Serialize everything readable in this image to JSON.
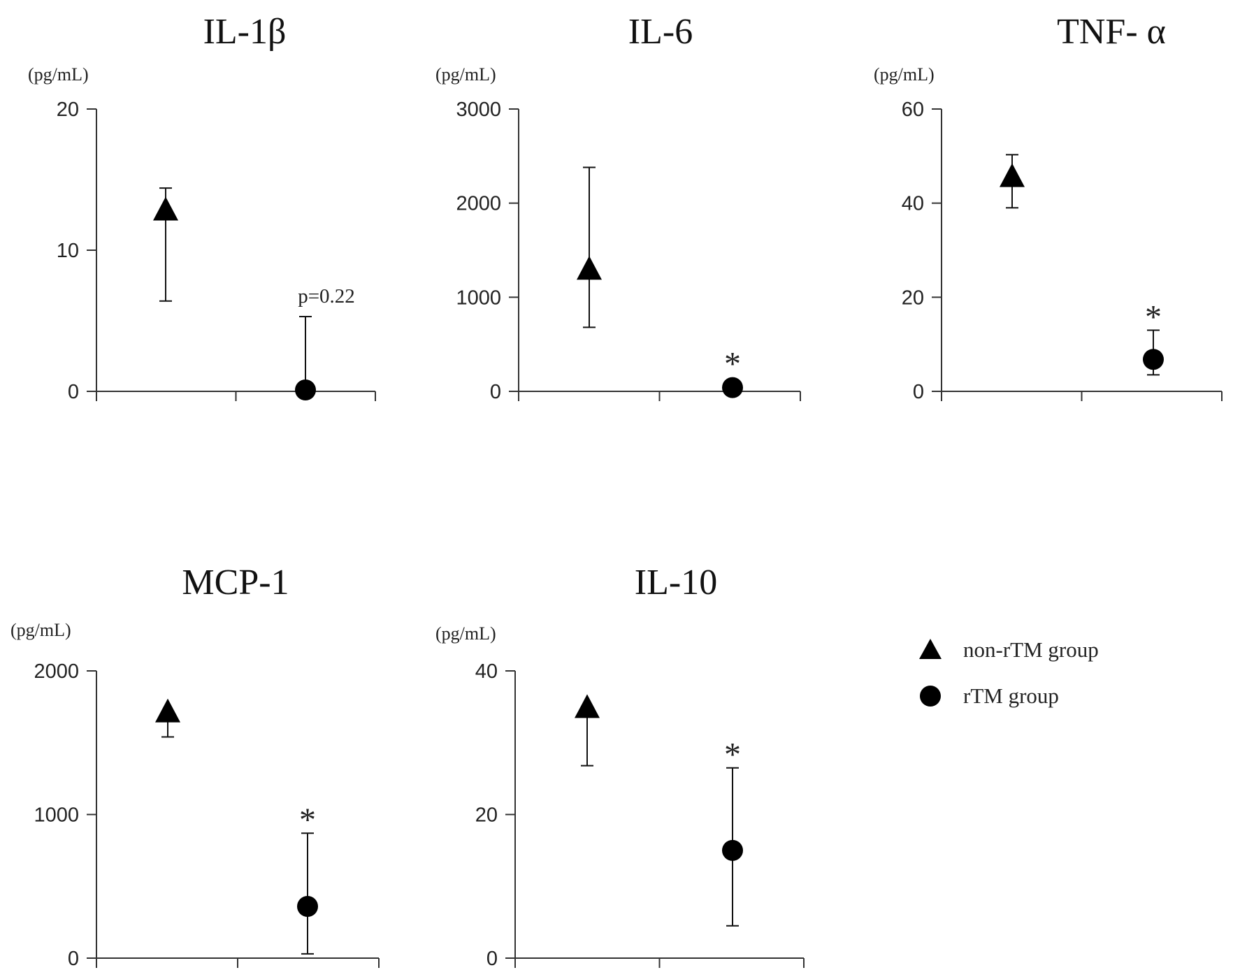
{
  "legend": {
    "position": "bottom-right",
    "items": [
      {
        "label": "non-rTM group",
        "marker": "triangle"
      },
      {
        "label": "rTM group",
        "marker": "circle"
      }
    ]
  },
  "chart_data": [
    {
      "type": "scatter",
      "title": "IL-1β",
      "ylabel": "(pg/mL)",
      "ylim": [
        0,
        20
      ],
      "yticks": [
        0,
        10,
        20
      ],
      "ytick_labels": [
        "0",
        "10",
        "20"
      ],
      "categories": [
        "non-rTM group",
        "rTM group"
      ],
      "series": [
        {
          "name": "non-rTM group",
          "marker": "triangle",
          "value": 12.8,
          "err_low": 6.4,
          "err_high": 14.4
        },
        {
          "name": "rTM group",
          "marker": "circle",
          "value": 0.1,
          "err_low": 0.1,
          "err_high": 5.3
        }
      ],
      "annotation": {
        "text": "p=0.22",
        "series": 1
      }
    },
    {
      "type": "scatter",
      "title": "IL-6",
      "ylabel": "(pg/mL)",
      "ylim": [
        0,
        3000
      ],
      "yticks": [
        0,
        1000,
        2000,
        3000
      ],
      "ytick_labels": [
        "0",
        "1000",
        "2000",
        "3000"
      ],
      "categories": [
        "non-rTM group",
        "rTM group"
      ],
      "series": [
        {
          "name": "non-rTM group",
          "marker": "triangle",
          "value": 1290,
          "err_low": 680,
          "err_high": 2380
        },
        {
          "name": "rTM group",
          "marker": "circle",
          "value": 40,
          "err_low": 40,
          "err_high": 40
        }
      ],
      "annotation": {
        "text": "*",
        "series": 1
      }
    },
    {
      "type": "scatter",
      "title": "TNF- α",
      "ylabel": "(pg/mL)",
      "ylim": [
        0,
        60
      ],
      "yticks": [
        0,
        20,
        40,
        60
      ],
      "ytick_labels": [
        "0",
        "20",
        "40",
        "60"
      ],
      "categories": [
        "non-rTM group",
        "rTM group"
      ],
      "series": [
        {
          "name": "non-rTM group",
          "marker": "triangle",
          "value": 45.5,
          "err_low": 39,
          "err_high": 50.3
        },
        {
          "name": "rTM group",
          "marker": "circle",
          "value": 6.8,
          "err_low": 3.5,
          "err_high": 13
        }
      ],
      "annotation": {
        "text": "*",
        "series": 1
      }
    },
    {
      "type": "scatter",
      "title": "MCP-1",
      "ylabel": "(pg/mL)",
      "ylim": [
        0,
        2000
      ],
      "yticks": [
        0,
        1000,
        2000
      ],
      "ytick_labels": [
        "0",
        "1000",
        "2000"
      ],
      "categories": [
        "non-rTM group",
        "rTM group"
      ],
      "series": [
        {
          "name": "non-rTM group",
          "marker": "triangle",
          "value": 1710,
          "err_low": 1540,
          "err_high": 1710
        },
        {
          "name": "rTM group",
          "marker": "circle",
          "value": 360,
          "err_low": 30,
          "err_high": 870
        }
      ],
      "annotation": {
        "text": "*",
        "series": 1
      }
    },
    {
      "type": "scatter",
      "title": "IL-10",
      "ylabel": "(pg/mL)",
      "ylim": [
        0,
        40
      ],
      "yticks": [
        0,
        20,
        40
      ],
      "ytick_labels": [
        "0",
        "20",
        "40"
      ],
      "categories": [
        "non-rTM group",
        "rTM group"
      ],
      "series": [
        {
          "name": "non-rTM group",
          "marker": "triangle",
          "value": 34.8,
          "err_low": 26.8,
          "err_high": 34.8
        },
        {
          "name": "rTM group",
          "marker": "circle",
          "value": 15,
          "err_low": 4.5,
          "err_high": 26.5
        }
      ],
      "annotation": {
        "text": "*",
        "series": 1
      }
    }
  ]
}
